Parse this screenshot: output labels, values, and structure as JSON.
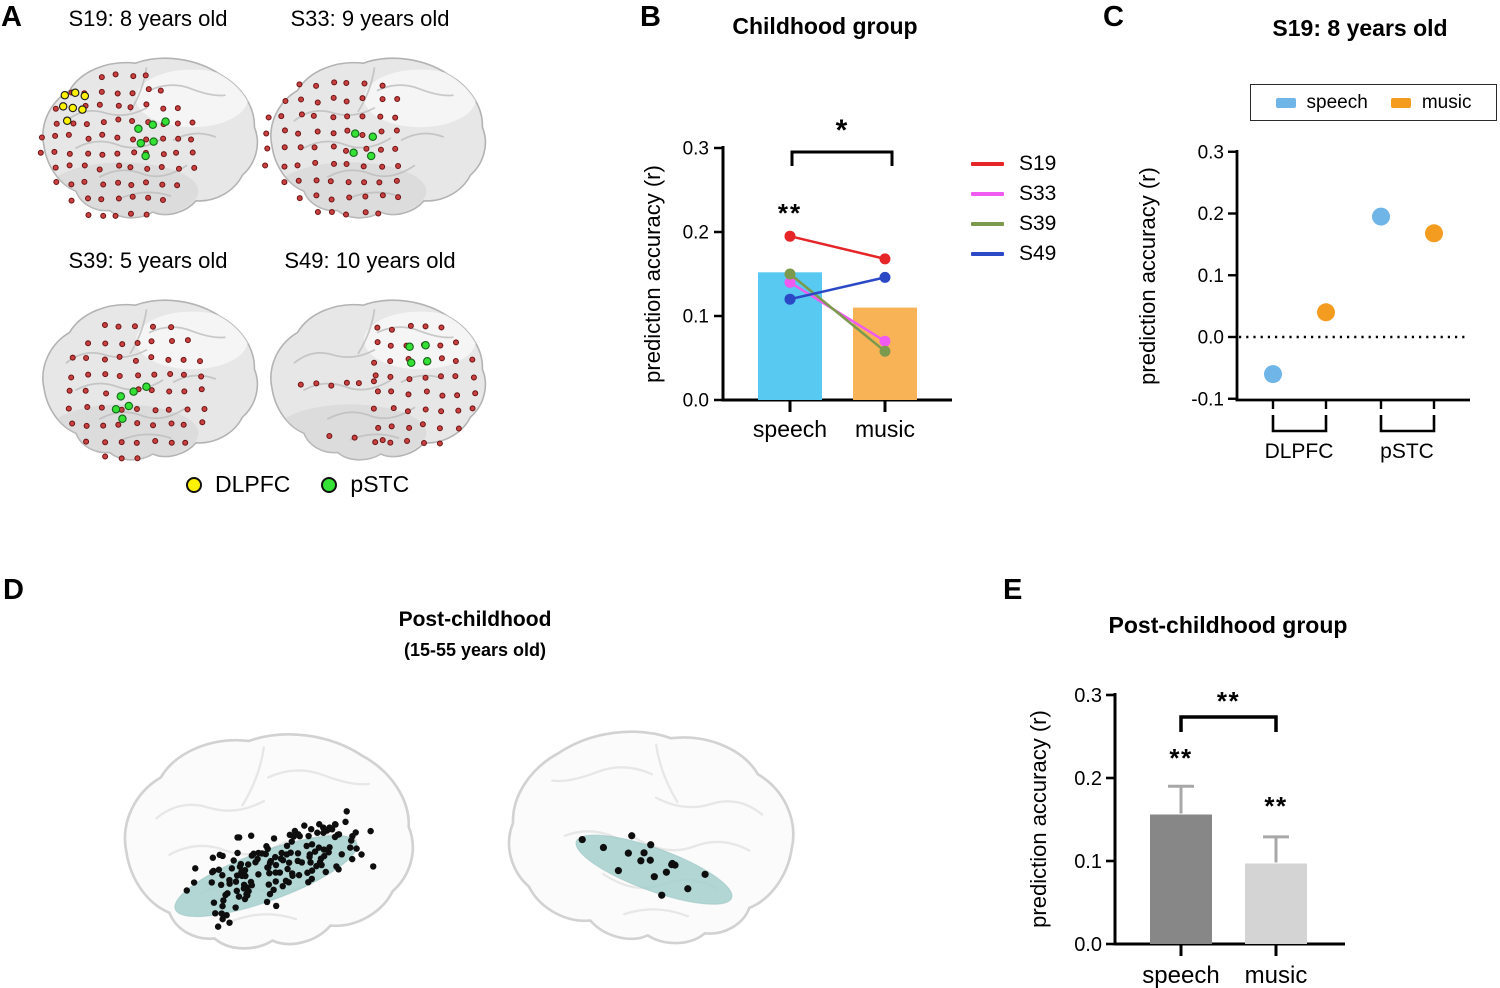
{
  "panels": {
    "a": {
      "label": "A",
      "subjects": [
        {
          "id": "S19",
          "title": "S19: 8 years old",
          "electrodes": {
            "red": 92,
            "yellow": 7,
            "green": 6
          }
        },
        {
          "id": "S33",
          "title": "S33: 9 years old",
          "electrodes": {
            "red": 72,
            "yellow": 0,
            "green": 4
          }
        },
        {
          "id": "S39",
          "title": "S39: 5 years old",
          "electrodes": {
            "red": 66,
            "yellow": 0,
            "green": 6
          }
        },
        {
          "id": "S49",
          "title": "S49: 10 years old",
          "electrodes": {
            "red": 60,
            "yellow": 0,
            "green": 4
          }
        }
      ],
      "legend": [
        {
          "label": "DLPFC",
          "color": "#FFF200"
        },
        {
          "label": "pSTC",
          "color": "#35E135"
        }
      ],
      "electrode_colors": {
        "red": "#C84040",
        "red_ring": "#6E1414",
        "yellow": "#FFF200",
        "green": "#35E135"
      }
    },
    "b": {
      "label": "B"
    },
    "c": {
      "label": "C"
    },
    "d": {
      "label": "D",
      "title": "Post-childhood",
      "subtitle": "(15-55 years old)",
      "region_name": "STG/pSTC (highlighted)",
      "region_color": "#A7D2CF",
      "electrode_color": "#0E0E0E",
      "brains": [
        {
          "side": "left-lateral",
          "electrodes": 151
        },
        {
          "side": "right-lateral",
          "electrodes": 17
        }
      ]
    },
    "e": {
      "label": "E"
    }
  },
  "chart_data": [
    {
      "id": "childhood-group",
      "type": "bar",
      "title": "Childhood group",
      "categories": [
        "speech",
        "music"
      ],
      "bar_values": [
        0.152,
        0.11
      ],
      "bar_colors": [
        "#58C9F1",
        "#F9B357"
      ],
      "series": [
        {
          "name": "S19",
          "color": "#E52528",
          "values": [
            0.195,
            0.168
          ]
        },
        {
          "name": "S33",
          "color": "#EF5BF0",
          "values": [
            0.14,
            0.07
          ]
        },
        {
          "name": "S39",
          "color": "#7C9A4E",
          "values": [
            0.15,
            0.058
          ]
        },
        {
          "name": "S49",
          "color": "#2B49C6",
          "values": [
            0.12,
            0.146
          ]
        }
      ],
      "ylabel": "prediction accuracy (r)",
      "yticks": [
        "0.0",
        "0.1",
        "0.2",
        "0.3"
      ],
      "ylim": [
        0,
        0.3
      ],
      "sig_speech": "**",
      "sig_comparison": "*",
      "legend_position": "right"
    },
    {
      "id": "s19-regions",
      "type": "scatter",
      "title": "S19: 8 years old",
      "legend": [
        {
          "label": "speech",
          "color": "#6FB5E7"
        },
        {
          "label": "music",
          "color": "#F49C20"
        }
      ],
      "groups": [
        "DLPFC",
        "pSTC"
      ],
      "points": [
        {
          "group": "DLPFC",
          "series": "speech",
          "value": -0.06
        },
        {
          "group": "DLPFC",
          "series": "music",
          "value": 0.04
        },
        {
          "group": "pSTC",
          "series": "speech",
          "value": 0.195
        },
        {
          "group": "pSTC",
          "series": "music",
          "value": 0.168
        }
      ],
      "ylabel": "prediction accuracy (r)",
      "yticks": [
        "-0.1",
        "0.0",
        "0.1",
        "0.2",
        "0.3"
      ],
      "ylim": [
        -0.1,
        0.3
      ],
      "zero_line": "dotted"
    },
    {
      "id": "post-childhood-group",
      "type": "bar",
      "title": "Post-childhood group",
      "categories": [
        "speech",
        "music"
      ],
      "values": [
        0.156,
        0.097
      ],
      "errors_upper": [
        0.034,
        0.032
      ],
      "bar_colors": [
        "#878787",
        "#D4D4D4"
      ],
      "error_color": "#A8A8A8",
      "ylabel": "prediction accuracy (r)",
      "yticks": [
        "0.0",
        "0.1",
        "0.2",
        "0.3"
      ],
      "ylim": [
        0,
        0.3
      ],
      "sig_bars": [
        "**",
        "**"
      ],
      "sig_comparison": "**"
    }
  ]
}
